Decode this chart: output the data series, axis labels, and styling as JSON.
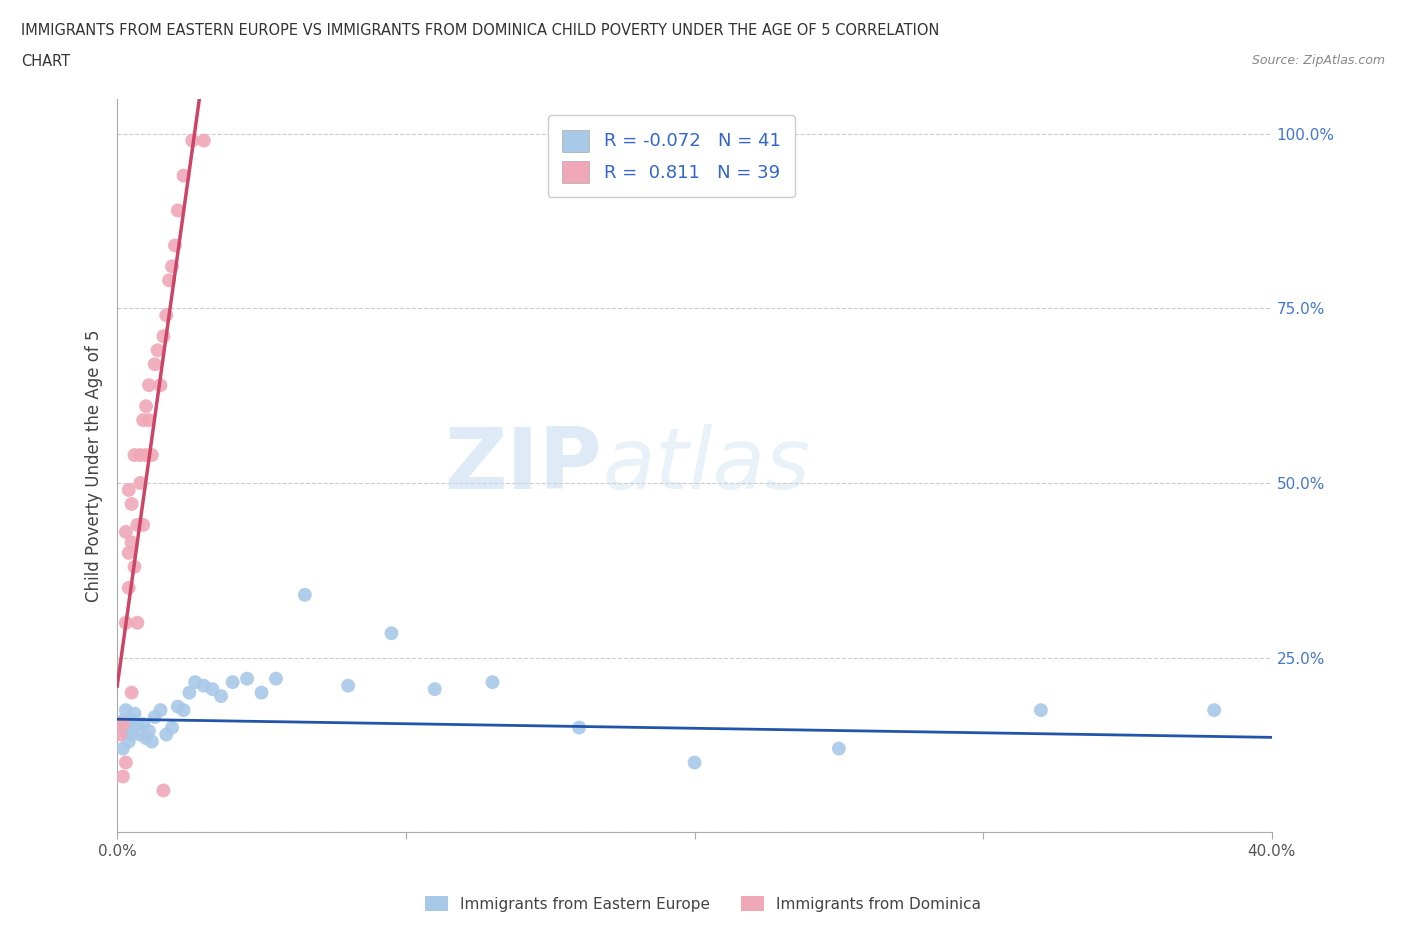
{
  "title_line1": "IMMIGRANTS FROM EASTERN EUROPE VS IMMIGRANTS FROM DOMINICA CHILD POVERTY UNDER THE AGE OF 5 CORRELATION",
  "title_line2": "CHART",
  "source": "Source: ZipAtlas.com",
  "ylabel": "Child Poverty Under the Age of 5",
  "xlim": [
    0.0,
    0.4
  ],
  "ylim": [
    0.0,
    1.05
  ],
  "blue_R": -0.072,
  "blue_N": 41,
  "pink_R": 0.811,
  "pink_N": 39,
  "blue_color": "#A8C8E8",
  "pink_color": "#F0A8B8",
  "blue_line_color": "#2255AA",
  "pink_line_color": "#CC4466",
  "watermark_zip": "ZIP",
  "watermark_atlas": "atlas",
  "blue_scatter_x": [
    0.001,
    0.002,
    0.002,
    0.003,
    0.003,
    0.004,
    0.004,
    0.005,
    0.005,
    0.006,
    0.007,
    0.008,
    0.009,
    0.01,
    0.011,
    0.012,
    0.013,
    0.015,
    0.017,
    0.019,
    0.021,
    0.023,
    0.025,
    0.027,
    0.03,
    0.033,
    0.036,
    0.04,
    0.045,
    0.05,
    0.055,
    0.065,
    0.08,
    0.095,
    0.11,
    0.13,
    0.16,
    0.2,
    0.25,
    0.32,
    0.38
  ],
  "blue_scatter_y": [
    0.155,
    0.12,
    0.16,
    0.145,
    0.175,
    0.13,
    0.15,
    0.16,
    0.14,
    0.17,
    0.155,
    0.14,
    0.155,
    0.135,
    0.145,
    0.13,
    0.165,
    0.175,
    0.14,
    0.15,
    0.18,
    0.175,
    0.2,
    0.215,
    0.21,
    0.205,
    0.195,
    0.215,
    0.22,
    0.2,
    0.22,
    0.34,
    0.21,
    0.285,
    0.205,
    0.215,
    0.15,
    0.1,
    0.12,
    0.175,
    0.175
  ],
  "pink_scatter_x": [
    0.001,
    0.001,
    0.002,
    0.002,
    0.003,
    0.003,
    0.003,
    0.004,
    0.004,
    0.004,
    0.005,
    0.005,
    0.005,
    0.006,
    0.006,
    0.007,
    0.007,
    0.008,
    0.008,
    0.009,
    0.009,
    0.01,
    0.01,
    0.011,
    0.011,
    0.012,
    0.013,
    0.014,
    0.015,
    0.016,
    0.016,
    0.017,
    0.018,
    0.019,
    0.02,
    0.021,
    0.023,
    0.026,
    0.03
  ],
  "pink_scatter_y": [
    0.155,
    0.14,
    0.08,
    0.155,
    0.1,
    0.3,
    0.43,
    0.35,
    0.4,
    0.49,
    0.2,
    0.415,
    0.47,
    0.38,
    0.54,
    0.3,
    0.44,
    0.54,
    0.5,
    0.44,
    0.59,
    0.54,
    0.61,
    0.59,
    0.64,
    0.54,
    0.67,
    0.69,
    0.64,
    0.71,
    0.06,
    0.74,
    0.79,
    0.81,
    0.84,
    0.89,
    0.94,
    0.99,
    0.99
  ]
}
